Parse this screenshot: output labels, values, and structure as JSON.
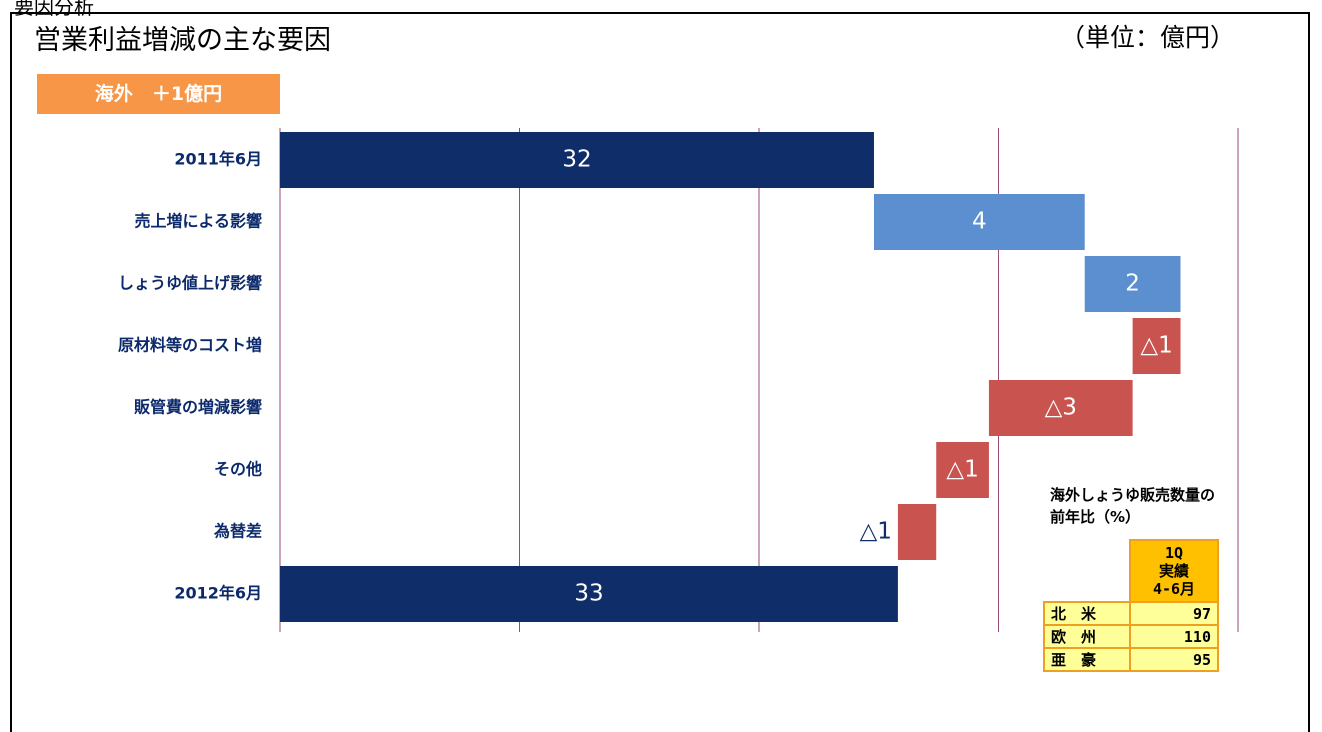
{
  "heading": "要因分析",
  "unit": "（単位：億円）",
  "badge": "海外　＋1億円",
  "chart_data": {
    "type": "waterfall",
    "title": "営業利益増減の主な要因",
    "categories": [
      "2011年6月",
      "売上増による影響",
      "しょうゆ値上げ影響",
      "原材料等のコスト増",
      "販管費の増減影響",
      "その他",
      "為替差",
      "2012年6月"
    ],
    "measure": [
      "total",
      "relative",
      "relative",
      "relative",
      "relative",
      "relative",
      "relative",
      "total"
    ],
    "values": [
      32.4,
      4.4,
      2.0,
      -1.0,
      -3.0,
      -1.1,
      -0.8,
      32.9
    ],
    "value_labels": [
      "32",
      "4",
      "2",
      "△1",
      "△3",
      "△1",
      "△1",
      "33"
    ],
    "colors": {
      "total": "#0f2d69",
      "increase": "#5b8fd0",
      "decrease": "#c9534f"
    },
    "xlim": [
      20,
      40
    ],
    "xticks": [
      20,
      25,
      30,
      35,
      40
    ],
    "grid": true
  },
  "table": {
    "title": [
      "海外しょうゆ販売数量の",
      "前年比（%）"
    ],
    "header": [
      "1Q",
      "実績",
      "4-6月"
    ],
    "rows": [
      [
        "北　米",
        97
      ],
      [
        "欧　州",
        110
      ],
      [
        "亜　豪",
        95
      ]
    ]
  }
}
